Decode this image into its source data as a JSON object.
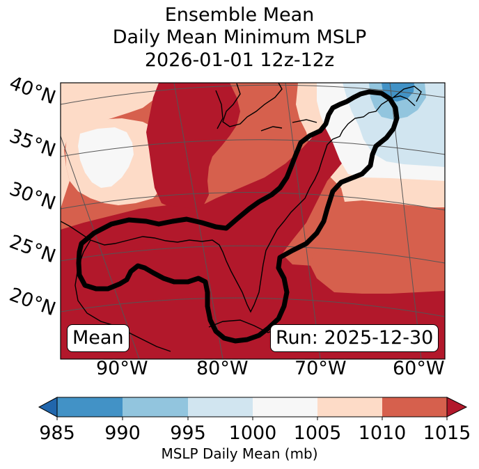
{
  "title": {
    "line1": "Ensemble Mean",
    "line2": "Daily Mean Minimum MSLP",
    "line3": "2026-01-01 12z-12z"
  },
  "lat_labels": [
    "40°N",
    "35°N",
    "30°N",
    "25°N",
    "20°N"
  ],
  "lon_labels": [
    "90°W",
    "80°W",
    "70°W",
    "60°W"
  ],
  "badges": {
    "left": "Mean",
    "right": "Run: 2025-12-30"
  },
  "colorbar": {
    "label": "MSLP Daily Mean (mb)",
    "ticks": [
      "985",
      "990",
      "995",
      "1000",
      "1005",
      "1010",
      "1015"
    ],
    "bins": [
      {
        "range": [
          985,
          990
        ],
        "color": "#4292c6"
      },
      {
        "range": [
          990,
          995
        ],
        "color": "#92c5de"
      },
      {
        "range": [
          995,
          1000
        ],
        "color": "#d1e5f0"
      },
      {
        "range": [
          1000,
          1005
        ],
        "color": "#f7f7f7"
      },
      {
        "range": [
          1005,
          1010
        ],
        "color": "#fddbc7"
      },
      {
        "range": [
          1010,
          1015
        ],
        "color": "#d6604d"
      }
    ],
    "under_color": "#2166ac",
    "over_color": "#b2182b"
  },
  "map_colors": {
    "c1015": "#b2182b",
    "c1010": "#d6604d",
    "c1005": "#fddbc7",
    "c1000": "#f7f7f7",
    "c995": "#d1e5f0",
    "c990": "#92c5de",
    "c985": "#4292c6",
    "contour": "#000000",
    "coast": "#000000",
    "grid": "#555555"
  }
}
